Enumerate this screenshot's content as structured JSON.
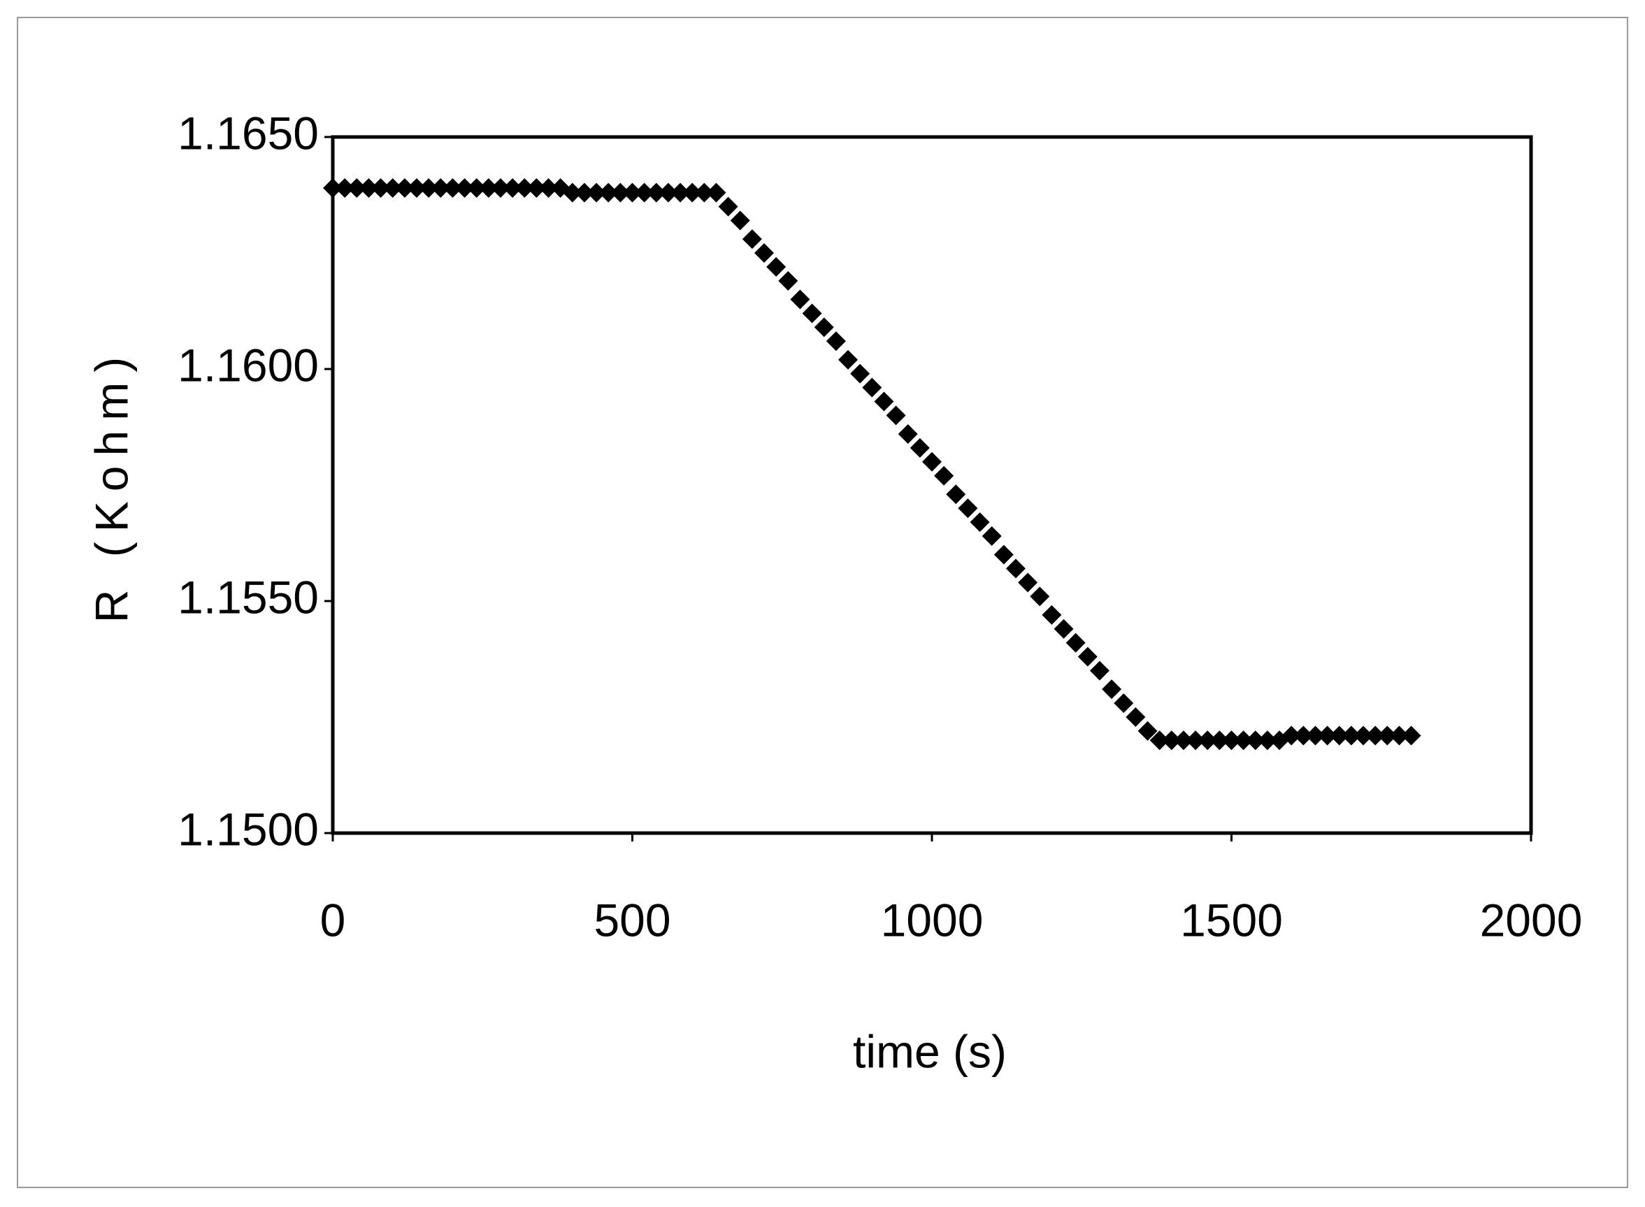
{
  "chart_data": {
    "type": "scatter",
    "x_label": "time (s)",
    "y_label": "R (Kohm)",
    "xlim": [
      0,
      2000
    ],
    "xticks": [
      0,
      500,
      1000,
      1500,
      2000
    ],
    "ylim": [
      1.15,
      1.165
    ],
    "yticks": [
      {
        "value": 1.15,
        "label": "1.1500"
      },
      {
        "value": 1.155,
        "label": "1.1550"
      },
      {
        "value": 1.16,
        "label": "1.1600"
      },
      {
        "value": 1.165,
        "label": "1.1650"
      }
    ],
    "grid": false,
    "color": "#000000",
    "x": [
      0,
      20,
      40,
      60,
      80,
      100,
      120,
      140,
      160,
      180,
      200,
      220,
      240,
      260,
      280,
      300,
      320,
      340,
      360,
      380,
      400,
      420,
      440,
      460,
      480,
      500,
      520,
      540,
      560,
      580,
      600,
      620,
      640,
      660,
      680,
      700,
      720,
      740,
      760,
      780,
      800,
      820,
      840,
      860,
      880,
      900,
      920,
      940,
      960,
      980,
      1000,
      1020,
      1040,
      1060,
      1080,
      1100,
      1120,
      1140,
      1160,
      1180,
      1200,
      1220,
      1240,
      1260,
      1280,
      1300,
      1320,
      1340,
      1360,
      1380,
      1400,
      1420,
      1440,
      1460,
      1480,
      1500,
      1520,
      1540,
      1560,
      1580,
      1600,
      1620,
      1640,
      1660,
      1680,
      1700,
      1720,
      1740,
      1760,
      1780,
      1800
    ],
    "values": [
      1.1639,
      1.1639,
      1.1639,
      1.1639,
      1.1639,
      1.1639,
      1.1639,
      1.1639,
      1.1639,
      1.1639,
      1.1639,
      1.1639,
      1.1639,
      1.1639,
      1.1639,
      1.1639,
      1.1639,
      1.1639,
      1.1639,
      1.1639,
      1.1638,
      1.1638,
      1.1638,
      1.1638,
      1.1638,
      1.1638,
      1.1638,
      1.1638,
      1.1638,
      1.1638,
      1.1638,
      1.1638,
      1.1638,
      1.1635,
      1.1632,
      1.1628,
      1.1625,
      1.1622,
      1.1619,
      1.1615,
      1.1612,
      1.1609,
      1.1606,
      1.1602,
      1.1599,
      1.1596,
      1.1593,
      1.159,
      1.1586,
      1.1583,
      1.158,
      1.1577,
      1.1573,
      1.157,
      1.1567,
      1.1564,
      1.156,
      1.1557,
      1.1554,
      1.1551,
      1.1547,
      1.1544,
      1.1541,
      1.1538,
      1.1535,
      1.1531,
      1.1528,
      1.1525,
      1.1522,
      1.152,
      1.152,
      1.152,
      1.152,
      1.152,
      1.152,
      1.152,
      1.152,
      1.152,
      1.152,
      1.152,
      1.1521,
      1.1521,
      1.1521,
      1.1521,
      1.1521,
      1.1521,
      1.1521,
      1.1521,
      1.1521,
      1.1521,
      1.1521
    ]
  }
}
